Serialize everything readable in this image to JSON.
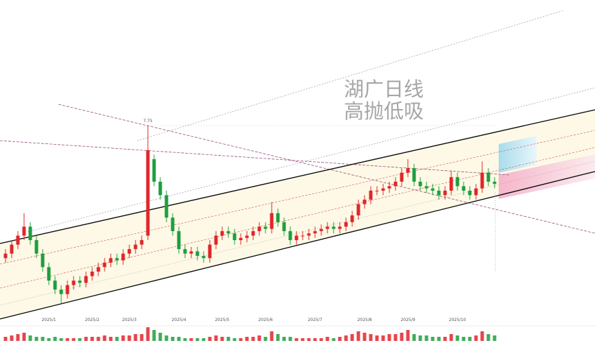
{
  "chart_data": {
    "type": "candlestick",
    "title": "湖广日线",
    "subtitle": "高抛低吸",
    "categories": [
      null,
      null,
      null,
      null,
      null,
      null,
      null,
      "2025/1",
      null,
      null,
      null,
      null,
      null,
      null,
      "2025/2",
      null,
      null,
      null,
      null,
      null,
      "2025/3",
      null,
      null,
      null,
      null,
      null,
      null,
      null,
      "2025/4",
      null,
      null,
      null,
      null,
      null,
      null,
      "2025/5",
      null,
      null,
      null,
      null,
      null,
      null,
      "2025/6",
      null,
      null,
      null,
      null,
      null,
      null,
      null,
      "2025/7",
      null,
      null,
      null,
      null,
      null,
      null,
      null,
      "2025/8",
      null,
      null,
      null,
      null,
      null,
      null,
      "2025/9",
      null,
      null,
      null,
      null,
      null,
      null,
      null,
      "2025/10",
      null,
      null,
      null,
      null,
      null,
      null
    ],
    "open": [
      4.8,
      4.9,
      5.1,
      5.3,
      5.5,
      5.2,
      4.9,
      4.6,
      4.3,
      4.1,
      4.0,
      4.2,
      4.3,
      4.25,
      4.4,
      4.5,
      4.6,
      4.7,
      4.8,
      4.75,
      4.9,
      5.0,
      5.1,
      5.3,
      7.0,
      6.5,
      6.2,
      5.7,
      5.4,
      5.0,
      4.9,
      4.95,
      4.85,
      4.8,
      5.1,
      5.3,
      5.4,
      5.35,
      5.2,
      5.25,
      5.3,
      5.4,
      5.5,
      5.45,
      5.8,
      5.6,
      5.4,
      5.2,
      5.3,
      5.3,
      5.35,
      5.4,
      5.45,
      5.5,
      5.45,
      5.5,
      5.6,
      5.75,
      6.0,
      6.1,
      6.3,
      6.3,
      6.35,
      6.4,
      6.5,
      6.7,
      6.8,
      6.5,
      6.4,
      6.35,
      6.3,
      6.2,
      6.3,
      6.6,
      6.4,
      6.3,
      6.2,
      6.35,
      6.7,
      6.5
    ],
    "high": [
      5.0,
      5.2,
      5.4,
      5.8,
      5.6,
      5.3,
      5.0,
      4.7,
      4.4,
      4.2,
      4.3,
      4.4,
      4.4,
      4.5,
      4.6,
      4.7,
      4.8,
      4.9,
      4.9,
      5.0,
      5.1,
      5.2,
      5.3,
      7.75,
      7.1,
      6.6,
      6.3,
      5.8,
      5.5,
      5.1,
      5.05,
      5.05,
      4.95,
      5.2,
      5.4,
      5.5,
      5.5,
      5.45,
      5.35,
      5.4,
      5.5,
      5.6,
      5.6,
      6.05,
      5.9,
      5.7,
      5.5,
      5.4,
      5.4,
      5.45,
      5.5,
      5.55,
      5.6,
      5.6,
      5.6,
      5.7,
      5.85,
      6.1,
      6.2,
      6.4,
      6.4,
      6.45,
      6.5,
      6.6,
      6.8,
      7.0,
      6.9,
      6.6,
      6.5,
      6.45,
      6.4,
      6.4,
      6.75,
      6.7,
      6.5,
      6.4,
      6.45,
      6.95,
      6.8,
      6.6
    ],
    "low": [
      4.7,
      4.8,
      5.0,
      5.2,
      5.1,
      4.8,
      4.5,
      4.2,
      4.0,
      3.8,
      3.9,
      4.1,
      4.15,
      4.15,
      4.3,
      4.4,
      4.5,
      4.6,
      4.65,
      4.65,
      4.8,
      4.9,
      5.0,
      5.2,
      6.4,
      6.1,
      5.6,
      5.3,
      4.9,
      4.8,
      4.8,
      4.75,
      4.7,
      4.7,
      5.0,
      5.2,
      5.25,
      5.1,
      5.1,
      5.15,
      5.2,
      5.3,
      5.35,
      5.35,
      5.5,
      5.3,
      5.1,
      5.1,
      5.2,
      5.2,
      5.25,
      5.3,
      5.35,
      5.35,
      5.35,
      5.4,
      5.5,
      5.65,
      5.9,
      6.0,
      6.2,
      6.2,
      6.25,
      6.3,
      6.4,
      6.6,
      6.4,
      6.3,
      6.25,
      6.2,
      6.1,
      6.1,
      6.2,
      6.3,
      6.2,
      6.1,
      6.1,
      6.25,
      6.4,
      6.35
    ],
    "close": [
      4.9,
      5.1,
      5.3,
      5.5,
      5.2,
      4.9,
      4.6,
      4.3,
      4.1,
      4.0,
      4.2,
      4.3,
      4.25,
      4.4,
      4.5,
      4.6,
      4.7,
      4.8,
      4.75,
      4.9,
      5.0,
      5.1,
      5.2,
      7.2,
      6.5,
      6.2,
      5.7,
      5.4,
      5.0,
      4.9,
      4.95,
      4.85,
      4.8,
      5.1,
      5.3,
      5.4,
      5.35,
      5.2,
      5.25,
      5.3,
      5.4,
      5.5,
      5.45,
      5.8,
      5.6,
      5.4,
      5.2,
      5.3,
      5.3,
      5.35,
      5.4,
      5.45,
      5.5,
      5.45,
      5.5,
      5.6,
      5.75,
      6.0,
      6.1,
      6.3,
      6.3,
      6.35,
      6.4,
      6.5,
      6.7,
      6.8,
      6.5,
      6.4,
      6.35,
      6.3,
      6.2,
      6.3,
      6.6,
      6.4,
      6.3,
      6.2,
      6.35,
      6.7,
      6.5,
      6.45
    ],
    "volume": [
      3,
      4,
      5,
      6,
      4,
      3,
      3,
      2,
      3,
      2,
      2,
      2,
      2,
      3,
      3,
      3,
      4,
      3,
      3,
      4,
      4,
      5,
      5,
      10,
      8,
      6,
      4,
      3,
      3,
      2,
      2,
      2,
      2,
      3,
      4,
      3,
      3,
      2,
      2,
      3,
      3,
      4,
      3,
      7,
      5,
      3,
      3,
      2,
      2,
      2,
      2,
      2,
      3,
      2,
      3,
      4,
      5,
      7,
      6,
      5,
      4,
      4,
      5,
      5,
      6,
      8,
      5,
      4,
      4,
      3,
      3,
      3,
      5,
      4,
      3,
      3,
      4,
      7,
      5,
      4
    ],
    "ylim": [
      3.37,
      10.54
    ],
    "up_color": "#e0262b",
    "down_color": "#1e9e3e"
  }
}
